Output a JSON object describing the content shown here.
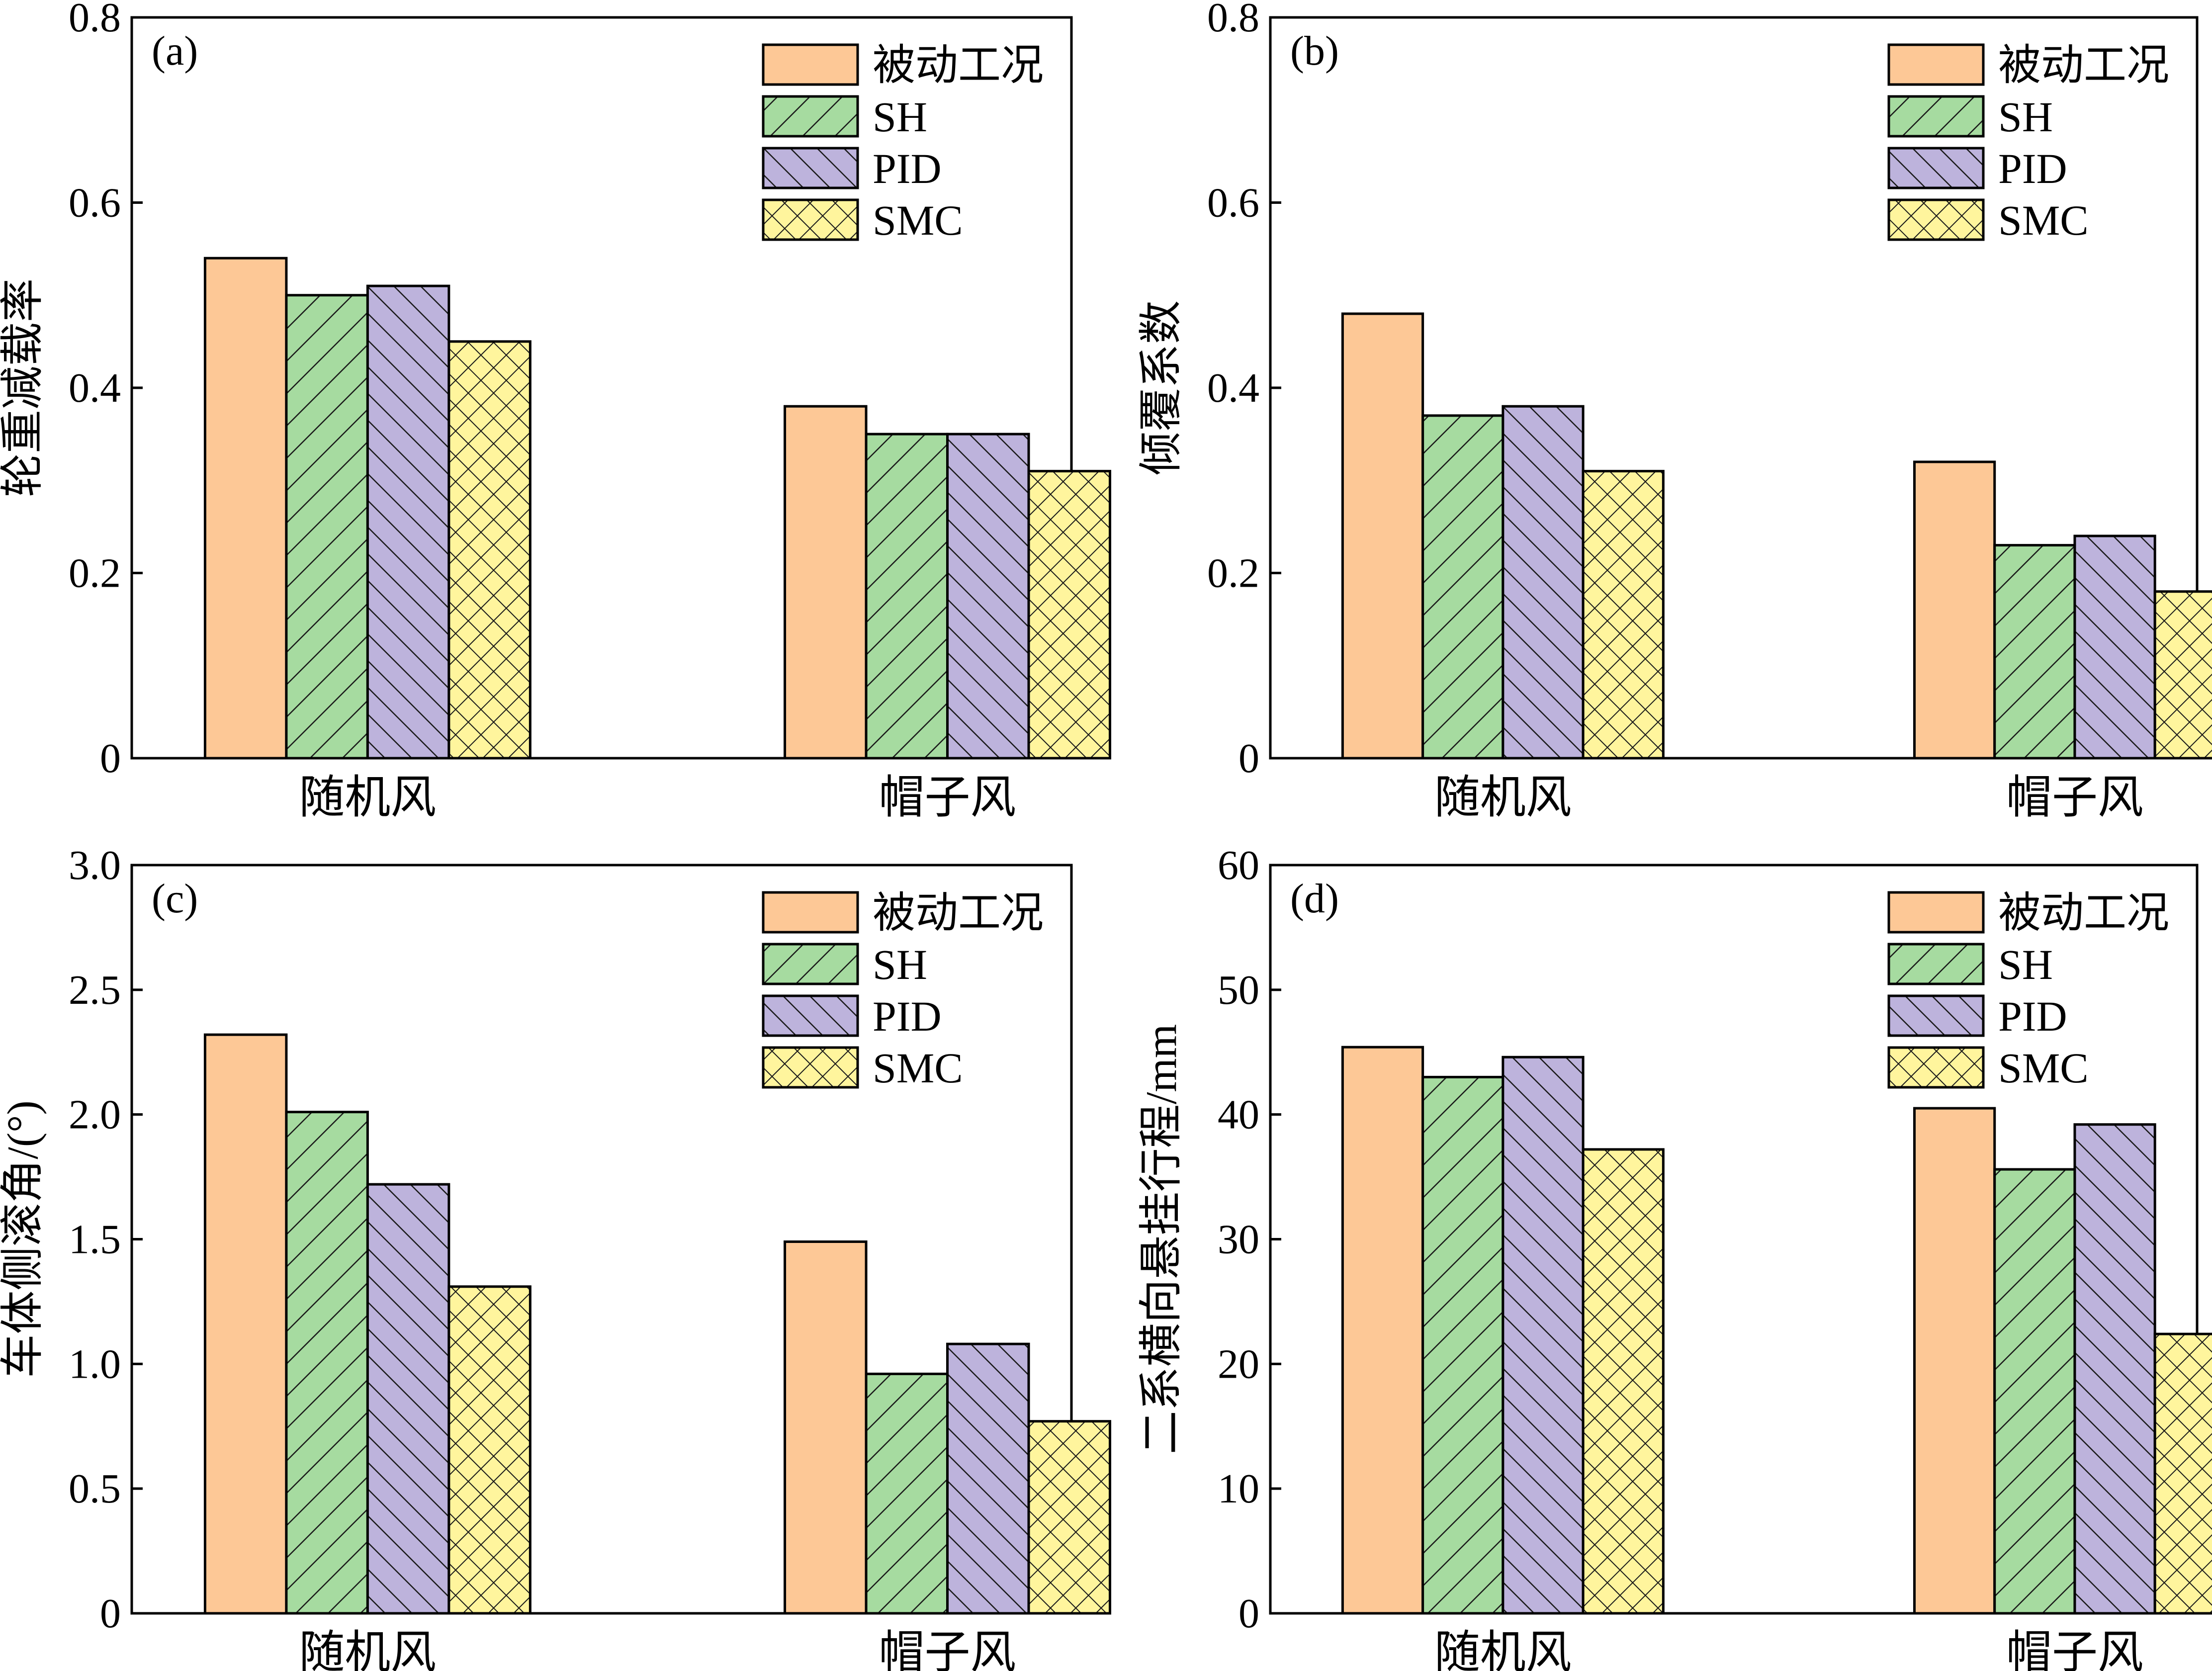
{
  "figure": {
    "panels_order": [
      "a",
      "b",
      "c",
      "d"
    ]
  },
  "legend": {
    "entries": [
      "被动工况",
      "SH",
      "PID",
      "SMC"
    ],
    "colors": [
      "#fdc896",
      "#a6dba0",
      "#bdb3dc",
      "#fff59d"
    ],
    "patterns": [
      "solid",
      "forward-hatch",
      "back-hatch",
      "crosshatch"
    ]
  },
  "chart_data": [
    {
      "id": "a",
      "panel_label": "(a)",
      "type": "bar",
      "categories": [
        "随机风",
        "帽子风"
      ],
      "series": [
        {
          "name": "被动工况",
          "values": [
            0.54,
            0.38
          ]
        },
        {
          "name": "SH",
          "values": [
            0.5,
            0.35
          ]
        },
        {
          "name": "PID",
          "values": [
            0.51,
            0.35
          ]
        },
        {
          "name": "SMC",
          "values": [
            0.45,
            0.31
          ]
        }
      ],
      "ylabel": "轮重减载率",
      "xlabel": "",
      "ylim": [
        0,
        0.8
      ],
      "yticks": [
        0,
        0.2,
        0.4,
        0.6,
        0.8
      ],
      "ytick_labels": [
        "0",
        "0.2",
        "0.4",
        "0.6",
        "0.8"
      ],
      "legend_position": "top-right"
    },
    {
      "id": "b",
      "panel_label": "(b)",
      "type": "bar",
      "categories": [
        "随机风",
        "帽子风"
      ],
      "series": [
        {
          "name": "被动工况",
          "values": [
            0.48,
            0.32
          ]
        },
        {
          "name": "SH",
          "values": [
            0.37,
            0.23
          ]
        },
        {
          "name": "PID",
          "values": [
            0.38,
            0.24
          ]
        },
        {
          "name": "SMC",
          "values": [
            0.31,
            0.18
          ]
        }
      ],
      "ylabel": "倾覆系数",
      "xlabel": "",
      "ylim": [
        0,
        0.8
      ],
      "yticks": [
        0,
        0.2,
        0.4,
        0.6,
        0.8
      ],
      "ytick_labels": [
        "0",
        "0.2",
        "0.4",
        "0.6",
        "0.8"
      ],
      "legend_position": "top-right"
    },
    {
      "id": "c",
      "panel_label": "(c)",
      "type": "bar",
      "categories": [
        "随机风",
        "帽子风"
      ],
      "series": [
        {
          "name": "被动工况",
          "values": [
            2.32,
            1.49
          ]
        },
        {
          "name": "SH",
          "values": [
            2.01,
            0.96
          ]
        },
        {
          "name": "PID",
          "values": [
            1.72,
            1.08
          ]
        },
        {
          "name": "SMC",
          "values": [
            1.31,
            0.77
          ]
        }
      ],
      "ylabel": "车体侧滚角/(°)",
      "xlabel": "",
      "ylim": [
        0,
        3.0
      ],
      "yticks": [
        0,
        0.5,
        1.0,
        1.5,
        2.0,
        2.5,
        3.0
      ],
      "ytick_labels": [
        "0",
        "0.5",
        "1.0",
        "1.5",
        "2.0",
        "2.5",
        "3.0"
      ],
      "legend_position": "top-right"
    },
    {
      "id": "d",
      "panel_label": "(d)",
      "type": "bar",
      "categories": [
        "随机风",
        "帽子风"
      ],
      "series": [
        {
          "name": "被动工况",
          "values": [
            45.4,
            40.5
          ]
        },
        {
          "name": "SH",
          "values": [
            43.0,
            35.6
          ]
        },
        {
          "name": "PID",
          "values": [
            44.6,
            39.2
          ]
        },
        {
          "name": "SMC",
          "values": [
            37.2,
            22.4
          ]
        }
      ],
      "ylabel": "二系横向悬挂行程/mm",
      "xlabel": "",
      "ylim": [
        0,
        60
      ],
      "yticks": [
        0,
        10,
        20,
        30,
        40,
        50,
        60
      ],
      "ytick_labels": [
        "0",
        "10",
        "20",
        "30",
        "40",
        "50",
        "60"
      ],
      "legend_position": "top-right"
    }
  ]
}
